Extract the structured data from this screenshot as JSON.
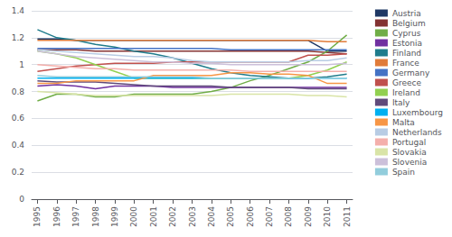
{
  "chart_data": {
    "type": "line",
    "x": [
      1995,
      1996,
      1997,
      1998,
      1999,
      2000,
      2001,
      2002,
      2003,
      2004,
      2005,
      2006,
      2007,
      2008,
      2009,
      2010,
      2011
    ],
    "xlim": [
      1994.7,
      2011.3
    ],
    "xticks": [
      1995,
      1996,
      1997,
      1998,
      1999,
      2000,
      2001,
      2002,
      2003,
      2004,
      2005,
      2006,
      2007,
      2008,
      2009,
      2010,
      2011
    ],
    "ylim": [
      0,
      1.4
    ],
    "yticks": [
      0,
      0.2,
      0.4,
      0.6,
      0.8,
      1,
      1.2,
      1.4
    ],
    "grid": true,
    "legend": "right",
    "series": [
      {
        "name": "Austria",
        "color": "#1F3864",
        "values": [
          1.19,
          1.19,
          1.18,
          1.18,
          1.18,
          1.18,
          1.18,
          1.18,
          1.18,
          1.18,
          1.18,
          1.18,
          1.18,
          1.18,
          1.18,
          1.1,
          1.1
        ]
      },
      {
        "name": "Belgium",
        "color": "#833232",
        "values": [
          1.11,
          1.11,
          1.11,
          1.1,
          1.1,
          1.1,
          1.1,
          1.1,
          1.1,
          1.1,
          1.1,
          1.1,
          1.1,
          1.1,
          1.1,
          1.09,
          1.08
        ]
      },
      {
        "name": "Cyprus",
        "color": "#70AD47",
        "values": [
          0.73,
          0.78,
          0.78,
          0.76,
          0.76,
          0.78,
          0.78,
          0.78,
          0.78,
          0.8,
          0.83,
          0.88,
          0.92,
          0.97,
          1.02,
          1.1,
          1.22
        ]
      },
      {
        "name": "Estonia",
        "color": "#7030A0",
        "values": [
          0.84,
          0.85,
          0.84,
          0.82,
          0.84,
          0.84,
          0.84,
          0.83,
          0.83,
          0.83,
          0.83,
          0.83,
          0.83,
          0.83,
          0.83,
          0.83,
          0.83
        ]
      },
      {
        "name": "Finland",
        "color": "#1F7C8C",
        "values": [
          1.26,
          1.2,
          1.18,
          1.15,
          1.13,
          1.1,
          1.08,
          1.05,
          1.01,
          0.97,
          0.94,
          0.92,
          0.91,
          0.9,
          0.9,
          0.91,
          0.93
        ]
      },
      {
        "name": "France",
        "color": "#E07B39",
        "values": [
          1.18,
          1.18,
          1.18,
          1.18,
          1.18,
          1.18,
          1.18,
          1.18,
          1.18,
          1.18,
          1.18,
          1.18,
          1.18,
          1.18,
          1.18,
          1.17,
          1.17
        ]
      },
      {
        "name": "Germany",
        "color": "#4472C4",
        "values": [
          1.12,
          1.12,
          1.12,
          1.12,
          1.12,
          1.12,
          1.12,
          1.12,
          1.12,
          1.12,
          1.11,
          1.11,
          1.11,
          1.11,
          1.11,
          1.11,
          1.11
        ]
      },
      {
        "name": "Greece",
        "color": "#C0504D",
        "values": [
          0.95,
          0.97,
          0.99,
          1.0,
          1.01,
          1.01,
          1.01,
          1.02,
          1.02,
          1.02,
          1.02,
          1.02,
          1.02,
          1.02,
          1.07,
          1.07,
          1.08
        ]
      },
      {
        "name": "Ireland",
        "color": "#92D050",
        "values": [
          1.1,
          1.08,
          1.05,
          1.0,
          0.95,
          0.9,
          0.9,
          0.9,
          0.9,
          0.9,
          0.9,
          0.9,
          0.9,
          0.9,
          0.92,
          0.96,
          1.02
        ]
      },
      {
        "name": "Italy",
        "color": "#604A7B",
        "values": [
          0.88,
          0.87,
          0.87,
          0.87,
          0.86,
          0.85,
          0.84,
          0.84,
          0.84,
          0.84,
          0.83,
          0.83,
          0.83,
          0.83,
          0.82,
          0.82,
          0.82
        ]
      },
      {
        "name": "Luxembourg",
        "color": "#00B0F0",
        "values": [
          0.9,
          0.9,
          0.9,
          0.9,
          0.9,
          0.9,
          0.9,
          0.9,
          0.9,
          0.9,
          0.9,
          0.9,
          0.9,
          0.9,
          0.9,
          0.9,
          0.9
        ]
      },
      {
        "name": "Malta",
        "color": "#F79646",
        "values": [
          0.86,
          0.86,
          0.88,
          0.88,
          0.88,
          0.88,
          0.92,
          0.92,
          0.92,
          0.92,
          0.94,
          0.94,
          0.93,
          0.93,
          0.92,
          0.86,
          0.86
        ]
      },
      {
        "name": "Netherlands",
        "color": "#B8CCE4",
        "values": [
          1.11,
          1.1,
          1.09,
          1.08,
          1.07,
          1.06,
          1.06,
          1.05,
          1.03,
          1.02,
          1.02,
          1.02,
          1.02,
          1.02,
          1.03,
          1.03,
          1.05
        ]
      },
      {
        "name": "Portugal",
        "color": "#F4AFAB",
        "values": [
          1.0,
          0.99,
          0.98,
          0.97,
          0.97,
          0.96,
          0.96,
          0.96,
          0.96,
          0.96,
          0.96,
          0.95,
          0.95,
          0.95,
          0.95,
          0.95,
          0.95
        ]
      },
      {
        "name": "Slovakia",
        "color": "#D9E4A7",
        "values": [
          0.8,
          0.79,
          0.78,
          0.77,
          0.77,
          0.77,
          0.77,
          0.77,
          0.77,
          0.77,
          0.78,
          0.78,
          0.78,
          0.78,
          0.77,
          0.77,
          0.76
        ]
      },
      {
        "name": "Slovenia",
        "color": "#CCC0DA",
        "values": [
          1.1,
          1.08,
          1.06,
          1.05,
          1.04,
          1.03,
          1.02,
          1.02,
          1.01,
          1.01,
          1.0,
          1.0,
          1.0,
          1.0,
          1.0,
          1.0,
          1.01
        ]
      },
      {
        "name": "Spain",
        "color": "#92CDDC",
        "values": [
          0.92,
          0.91,
          0.91,
          0.91,
          0.91,
          0.91,
          0.91,
          0.91,
          0.91,
          0.9,
          0.9,
          0.9,
          0.9,
          0.9,
          0.9,
          0.9,
          0.9
        ]
      }
    ]
  }
}
